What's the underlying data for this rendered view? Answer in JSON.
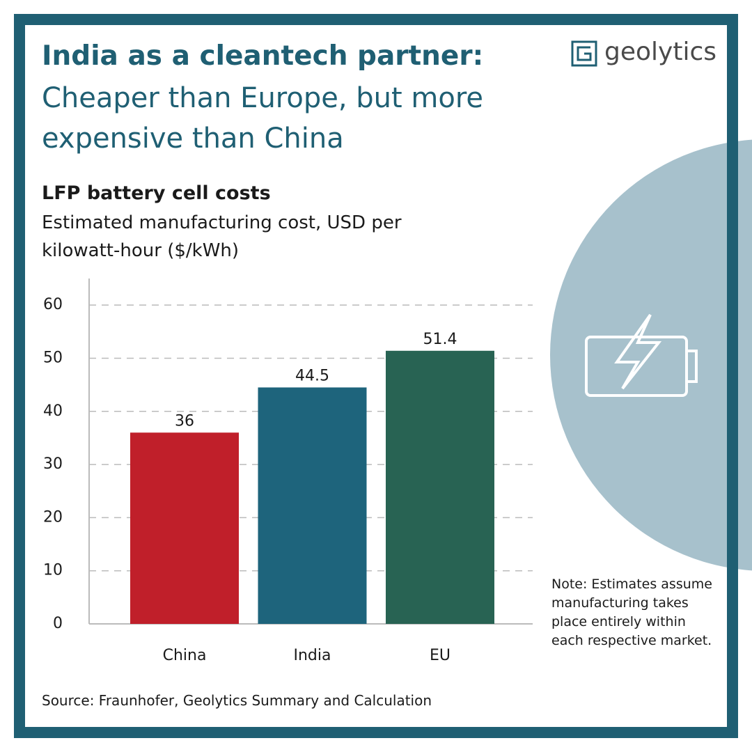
{
  "brand": "geolytics",
  "chart_data": {
    "type": "bar",
    "headline": "India as a cleantech partner:",
    "subheadline": "Cheaper than Europe, but more expensive than China",
    "title": "LFP battery cell costs",
    "subtitle": "Estimated manufacturing cost, USD per kilowatt-hour ($/kWh)",
    "categories": [
      "China",
      "India",
      "EU"
    ],
    "values": [
      36,
      44.5,
      51.4
    ],
    "colors": [
      "#c01f2a",
      "#1e647c",
      "#286353"
    ],
    "ylim": [
      0,
      65
    ],
    "yticks": [
      0,
      10,
      20,
      30,
      40,
      50,
      60
    ],
    "grid": true,
    "note": "Note: Estimates assume manufacturing takes place entirely within each respective market.",
    "source": "Source: Fraunhofer, Geolytics Summary and Calculation"
  }
}
